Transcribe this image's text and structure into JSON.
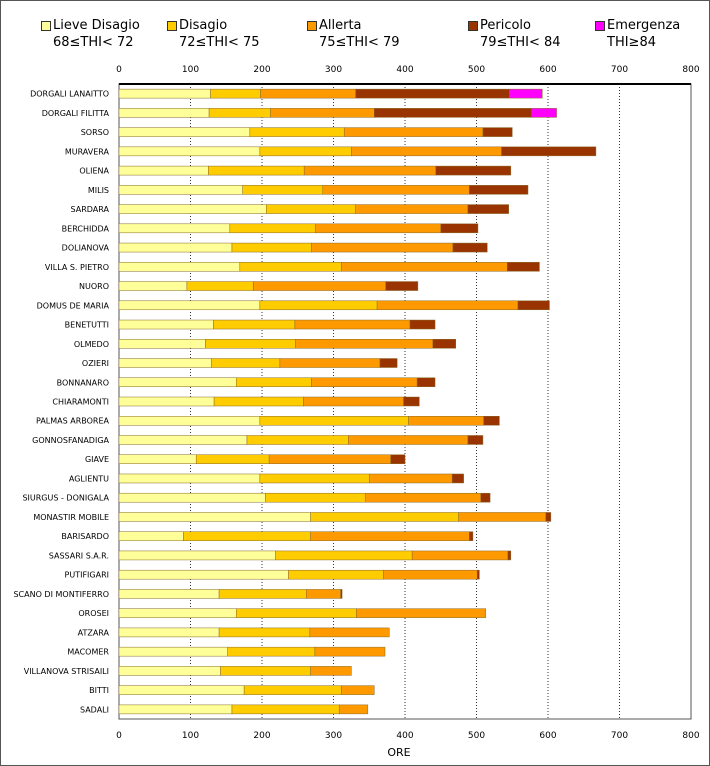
{
  "chart_data": {
    "type": "bar",
    "orientation": "horizontal",
    "stacked": true,
    "xlabel": "ORE",
    "xlim": [
      0,
      800
    ],
    "xticks": [
      0,
      100,
      200,
      300,
      400,
      500,
      600,
      700,
      800
    ],
    "legend": [
      {
        "name": "Lieve Disagio",
        "range": "68≤THI< 72",
        "color": "#ffff99"
      },
      {
        "name": "Disagio",
        "range": "72≤THI< 75",
        "color": "#ffcc00"
      },
      {
        "name": "Allerta",
        "range": "75≤THI< 79",
        "color": "#ff9900"
      },
      {
        "name": "Pericolo",
        "range": "79≤THI< 84",
        "color": "#993300"
      },
      {
        "name": "Emergenza",
        "range": "THI≥84",
        "color": "#ff00ff"
      }
    ],
    "categories": [
      "DORGALI LANAITTO",
      "DORGALI FILITTA",
      "SORSO",
      "MURAVERA",
      "OLIENA",
      "MILIS",
      "SARDARA",
      "BERCHIDDA",
      "DOLIANOVA",
      "VILLA S. PIETRO",
      "NUORO",
      "DOMUS DE MARIA",
      "BENETUTTI",
      "OLMEDO",
      "OZIERI",
      "BONNANARO",
      "CHIARAMONTI",
      "PALMAS ARBOREA",
      "GONNOSFANADIGA",
      "GIAVE",
      "AGLIENTU",
      "SIURGUS - DONIGALA",
      "MONASTIR MOBILE",
      "BARISARDO",
      "SASSARI S.A.R.",
      "PUTIFIGARI",
      "SCANO DI MONTIFERRO",
      "OROSEI",
      "ATZARA",
      "MACOMER",
      "VILLANOVA STRISAILI",
      "BITTI",
      "SADALI"
    ],
    "series": [
      {
        "name": "Lieve Disagio",
        "values": [
          128,
          126,
          183,
          197,
          125,
          173,
          206,
          155,
          158,
          169,
          95,
          197,
          132,
          121,
          129,
          164,
          133,
          197,
          179,
          108,
          197,
          205,
          268,
          90,
          219,
          237,
          140,
          164,
          140,
          152,
          142,
          175,
          158
        ]
      },
      {
        "name": "Disagio",
        "values": [
          70,
          86,
          132,
          128,
          134,
          112,
          125,
          120,
          111,
          142,
          93,
          164,
          114,
          126,
          96,
          105,
          125,
          208,
          142,
          102,
          153,
          140,
          207,
          178,
          191,
          133,
          122,
          168,
          127,
          122,
          126,
          136,
          150
        ]
      },
      {
        "name": "Allerta",
        "values": [
          133,
          145,
          194,
          210,
          184,
          205,
          157,
          175,
          198,
          232,
          185,
          197,
          161,
          192,
          140,
          148,
          140,
          105,
          167,
          170,
          116,
          161,
          122,
          222,
          134,
          131,
          48,
          181,
          111,
          98,
          57,
          46,
          40
        ]
      },
      {
        "name": "Pericolo",
        "values": [
          215,
          220,
          41,
          132,
          105,
          82,
          57,
          52,
          48,
          45,
          45,
          44,
          35,
          32,
          24,
          25,
          22,
          22,
          21,
          20,
          16,
          13,
          7,
          5,
          4,
          3,
          2,
          0,
          0,
          0,
          0,
          0,
          0
        ]
      },
      {
        "name": "Emergenza",
        "values": [
          46,
          35,
          0,
          0,
          0,
          0,
          0,
          0,
          0,
          0,
          0,
          0,
          0,
          0,
          0,
          0,
          0,
          0,
          0,
          0,
          0,
          0,
          0,
          0,
          0,
          0,
          0,
          0,
          0,
          0,
          0,
          0,
          0
        ]
      }
    ]
  }
}
